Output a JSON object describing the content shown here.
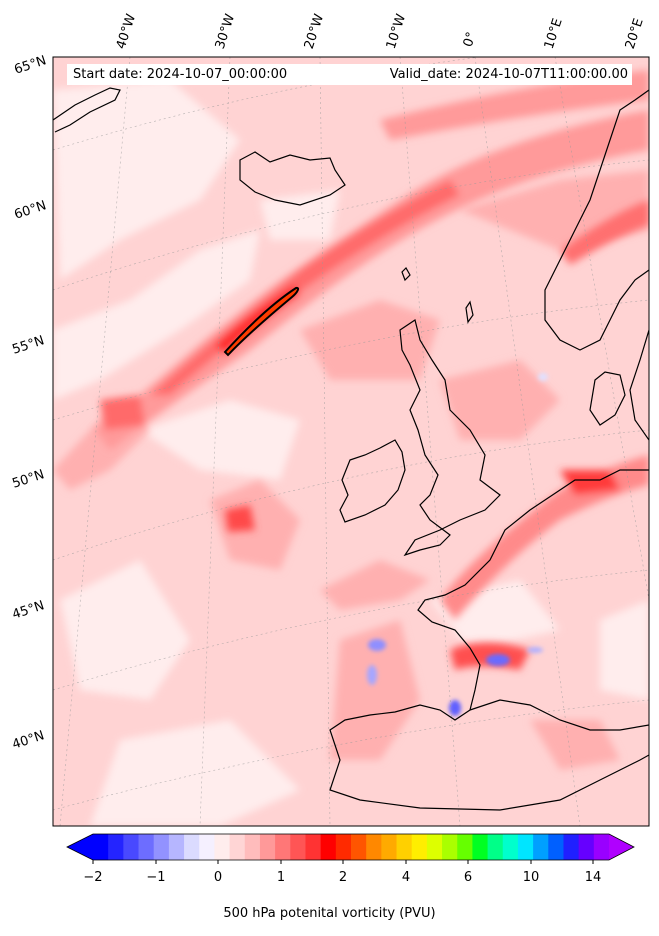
{
  "map": {
    "start_date_label": "Start date: 2024-10-07_00:00:00",
    "valid_date_label": "Valid_date: 2024-10-07T11:00:00.00",
    "longitude_labels": [
      "40°W",
      "30°W",
      "20°W",
      "10°W",
      "0°",
      "10°E",
      "20°E"
    ],
    "latitude_labels": [
      "65°N",
      "60°N",
      "55°N",
      "50°N",
      "45°N",
      "40°N"
    ],
    "variable": "500 hPa potential vorticity",
    "region": "North Atlantic and Western Europe"
  },
  "colorbar": {
    "label": "500 hPa potenital vorticity (PVU)",
    "tick_labels": [
      "−2",
      "−1",
      "0",
      "1",
      "2",
      "4",
      "6",
      "10",
      "14"
    ],
    "colors": [
      "#0000ff",
      "#2424ff",
      "#4949ff",
      "#6d6dff",
      "#9292ff",
      "#b6b6ff",
      "#dbdbff",
      "#f5f0ff",
      "#ffeded",
      "#ffd5d5",
      "#ffbcbc",
      "#ff9999",
      "#ff7777",
      "#ff5555",
      "#ff3333",
      "#ff0000",
      "#ff2a00",
      "#ff5500",
      "#ff8800",
      "#ffaa00",
      "#ffd000",
      "#ffee00",
      "#ddff00",
      "#aaff00",
      "#66ff00",
      "#00ff22",
      "#00ff88",
      "#00ffcc",
      "#00e5ff",
      "#00a0ff",
      "#0060ff",
      "#2020ff",
      "#6600ff",
      "#9900ff"
    ],
    "under_color": "#0000ff",
    "over_color": "#b000ff"
  }
}
